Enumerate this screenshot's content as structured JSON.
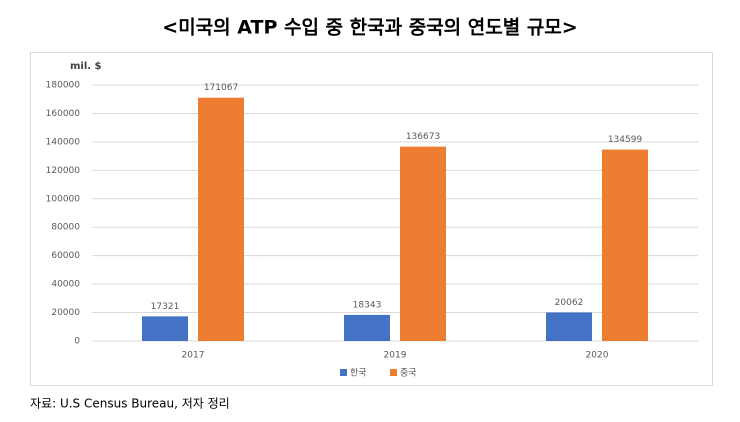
{
  "chart_data": {
    "type": "bar",
    "title": "<미국의 ATP 수입 중 한국과 중국의 연도별 규모>",
    "y_label": "mil. $",
    "source": "자료: U.S Census Bureau, 저자 정리",
    "categories": [
      "2017",
      "2019",
      "2020"
    ],
    "series": [
      {
        "name": "한국",
        "color": "#4472c4",
        "values": [
          17321,
          18343,
          20062
        ]
      },
      {
        "name": "중국",
        "color": "#ed7d31",
        "values": [
          171067,
          136673,
          134599
        ]
      }
    ],
    "ylim": [
      0,
      180000
    ],
    "yticks": [
      0,
      20000,
      40000,
      60000,
      80000,
      100000,
      120000,
      140000,
      160000,
      180000
    ],
    "grid": true,
    "legend": "bottom"
  }
}
